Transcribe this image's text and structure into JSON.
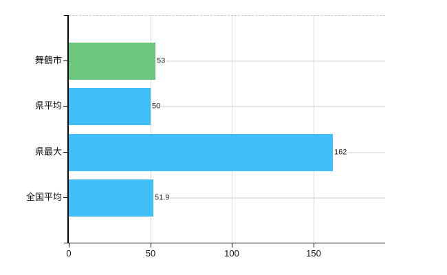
{
  "chart_data": {
    "type": "bar",
    "orientation": "horizontal",
    "title": "",
    "categories": [
      "舞鶴市",
      "県平均",
      "県最大",
      "全国平均"
    ],
    "values": [
      53,
      50,
      162,
      51.9
    ],
    "value_labels": [
      "53",
      "50",
      "162",
      "51.9"
    ],
    "bar_colors": [
      "#6cc77e",
      "#3fbef7",
      "#3fbef7",
      "#3fbef7"
    ],
    "x_ticks": [
      0,
      50,
      100,
      150
    ],
    "x_tick_labels": [
      "0",
      "50",
      "100",
      "150"
    ],
    "xlim": [
      0,
      194
    ],
    "grid": {
      "vertical_gridlines": true,
      "top_border_style": "dashed"
    },
    "legend": "none",
    "colors": {
      "highlight_bar": "#6cc77e",
      "default_bar": "#3fbef7",
      "gridline": "#d9d9d9",
      "leader_line": "#cccccc",
      "axis": "#000000",
      "text": "#111111",
      "background": "#ffffff"
    }
  }
}
